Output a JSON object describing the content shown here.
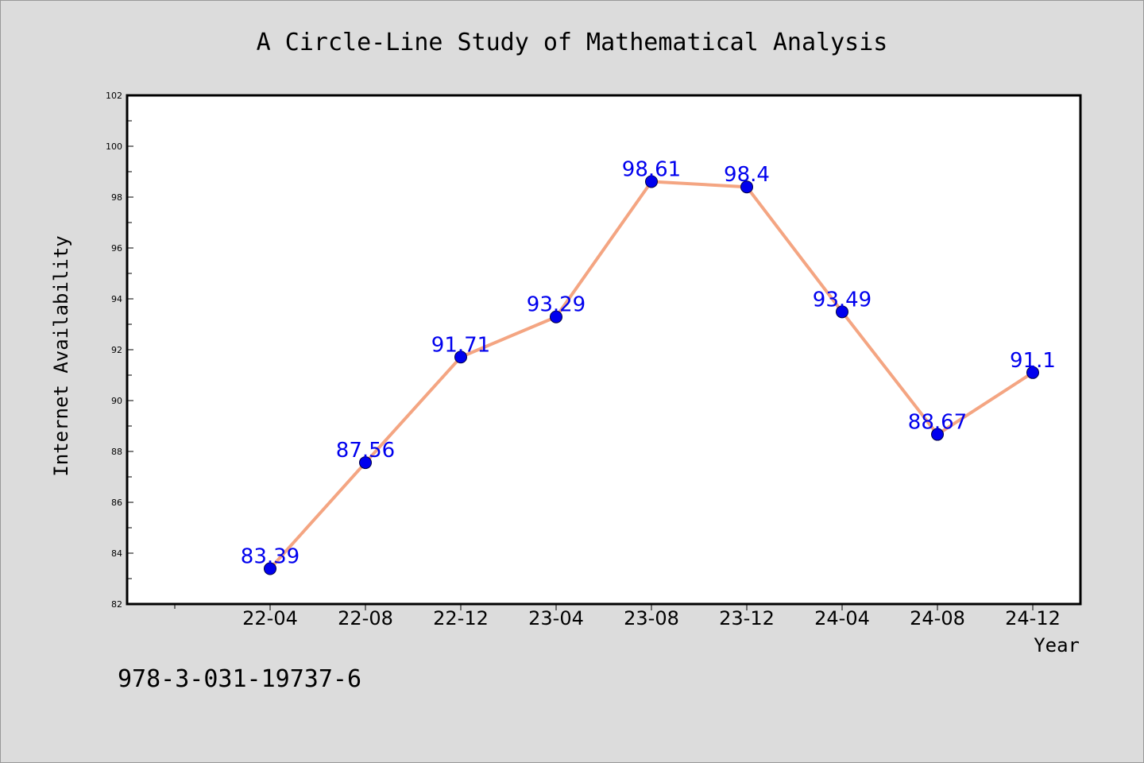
{
  "chart_data": {
    "type": "line",
    "title": "A Circle-Line Study of Mathematical Analysis",
    "xlabel": "Year",
    "ylabel": "Internet Availability",
    "categories": [
      "22-04",
      "22-08",
      "22-12",
      "23-04",
      "23-08",
      "23-12",
      "24-04",
      "24-08",
      "24-12"
    ],
    "series": [
      {
        "values": [
          83.39,
          87.56,
          91.71,
          93.29,
          98.61,
          98.4,
          93.49,
          88.67,
          91.1
        ],
        "labels": [
          "83.39",
          "87.56",
          "91.71",
          "93.29",
          "98.61",
          "98.4",
          "93.49",
          "88.67",
          "91.1"
        ],
        "line_color": "#f4a582",
        "marker_color": "#0000ee",
        "marker": "circle"
      }
    ],
    "ylim": [
      82,
      102
    ],
    "yticks": [
      82,
      84,
      86,
      88,
      90,
      92,
      94,
      96,
      98,
      100,
      102
    ],
    "grid": false,
    "legend": "none"
  },
  "footer": {
    "text": "978-3-031-19737-6"
  },
  "colors": {
    "background": "#dcdcdc",
    "plot_area": "#ffffff"
  }
}
